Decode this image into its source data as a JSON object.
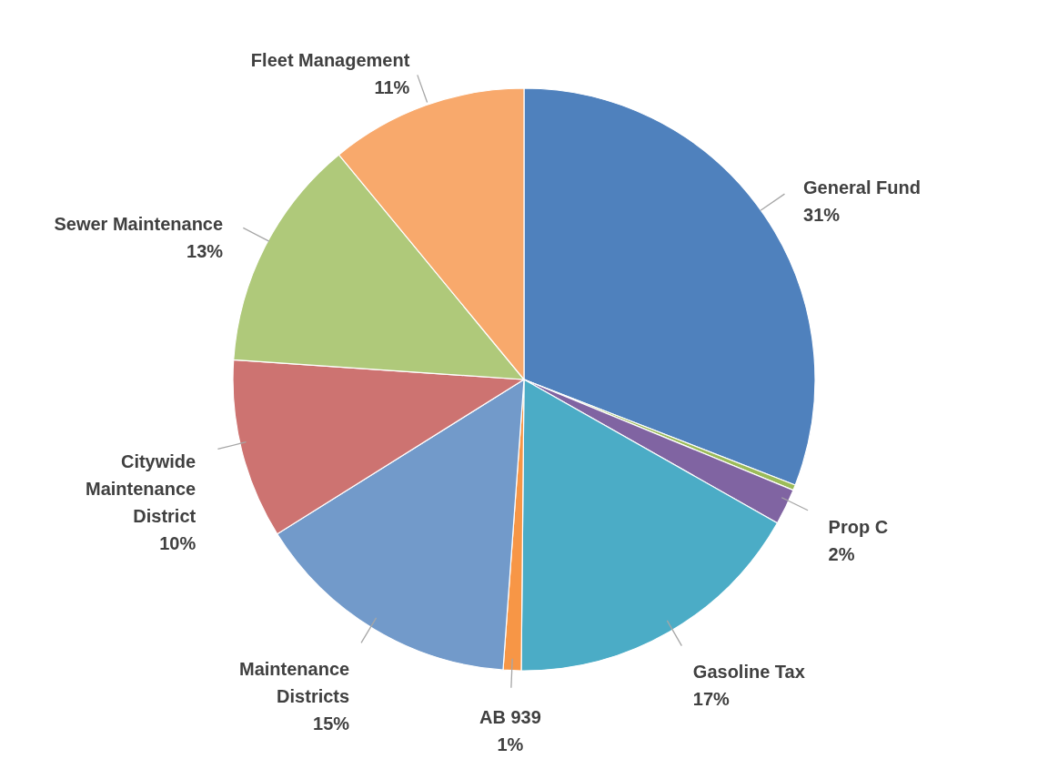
{
  "chart_data": {
    "type": "pie",
    "categories": [
      "General Fund",
      null,
      "Prop C",
      "Gasoline Tax",
      "AB 939",
      "Maintenance Districts",
      "Citywide Maintenance District",
      "Sewer Maintenance",
      "Fleet Management"
    ],
    "values": [
      31,
      0.3,
      2,
      17,
      1,
      15,
      10,
      13,
      11
    ],
    "colors": [
      "#4f81bd",
      "#9bbb59",
      "#8064a2",
      "#4bacc6",
      "#f79646",
      "#729aca",
      "#cd7371",
      "#afc97a",
      "#f8a96c"
    ],
    "value_labels": [
      "31%",
      null,
      "2%",
      "17%",
      "1%",
      "15%",
      "10%",
      "13%",
      "11%"
    ]
  }
}
